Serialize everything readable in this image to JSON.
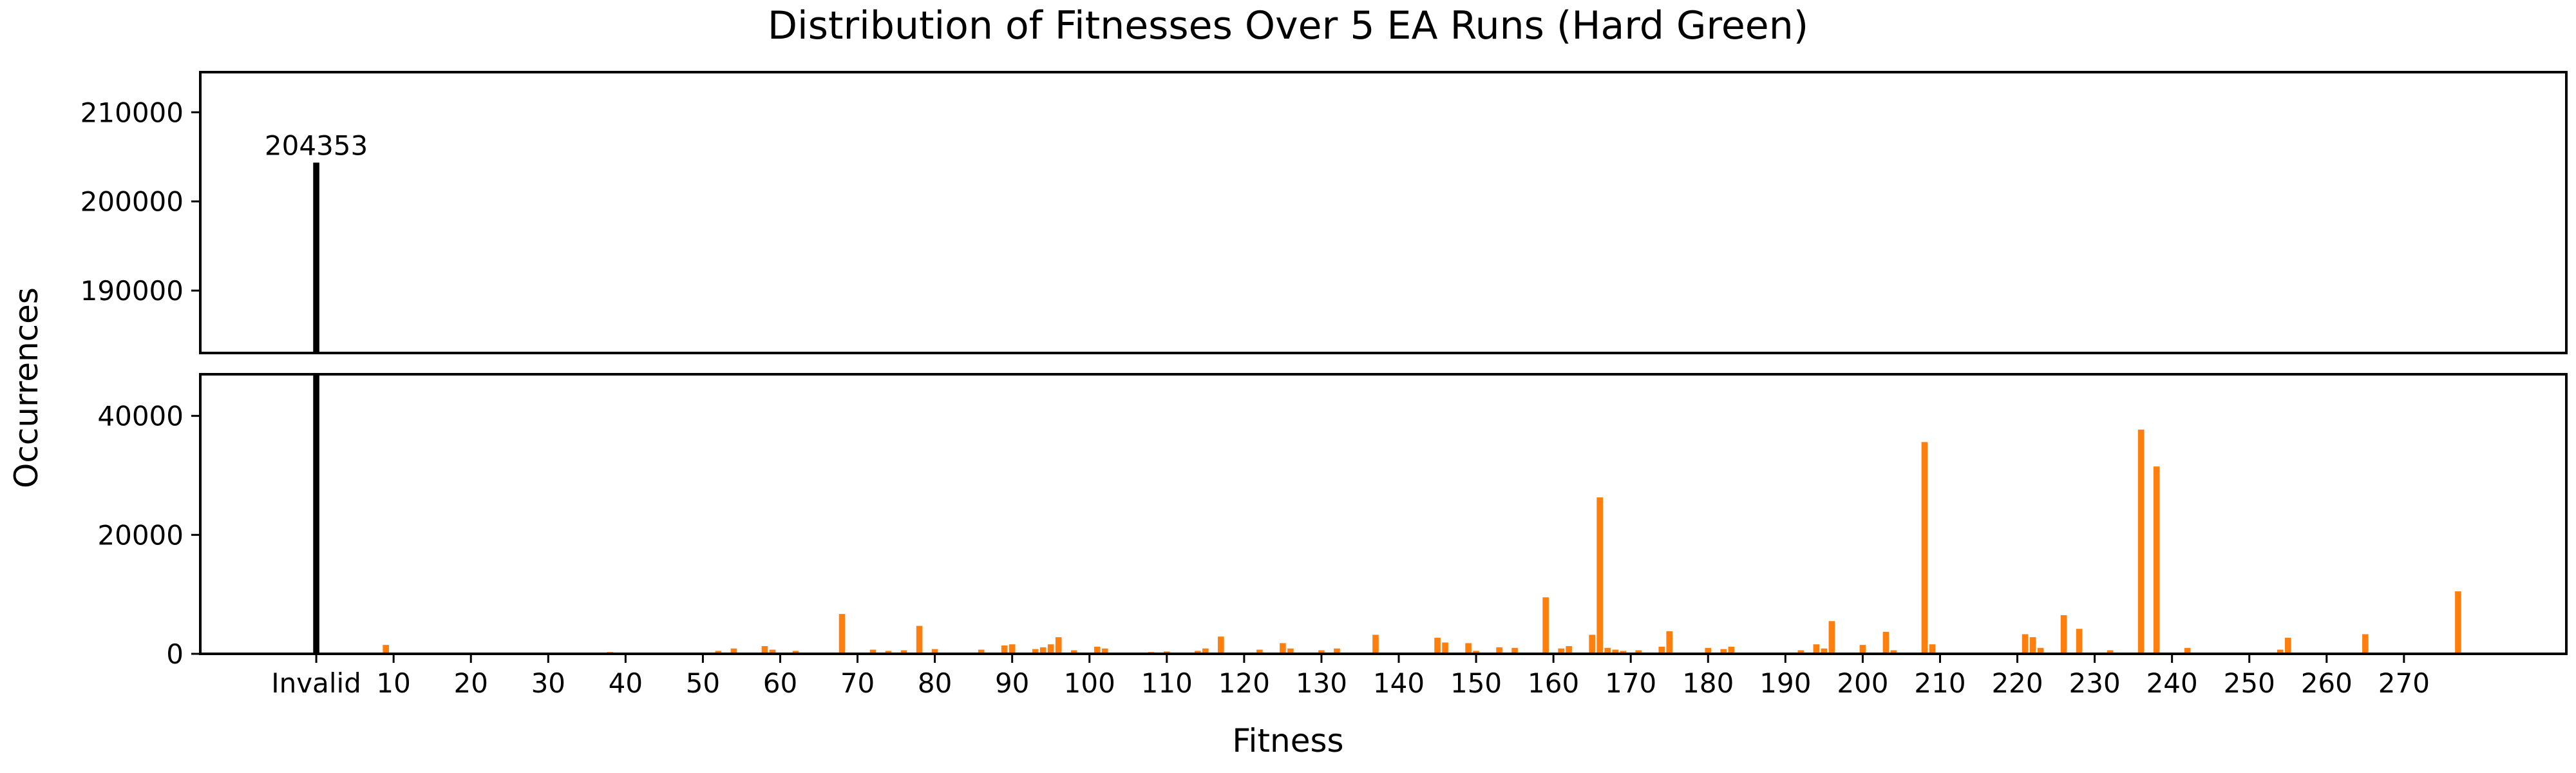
{
  "chart_data": {
    "type": "bar",
    "title": "Distribution of Fitnesses Over 5 EA Runs (Hard Green)",
    "xlabel": "Fitness",
    "ylabel": "Occurrences",
    "broken_y_axis": true,
    "top_panel": {
      "ylim": [
        183000,
        214500
      ],
      "yticks": [
        190000,
        200000,
        210000
      ]
    },
    "bottom_panel": {
      "ylim": [
        0,
        47000
      ],
      "yticks": [
        0,
        20000,
        40000
      ]
    },
    "xlim": [
      -15,
      291
    ],
    "xticks": [
      {
        "value": 0,
        "label": "Invalid"
      },
      {
        "value": 10,
        "label": "10"
      },
      {
        "value": 20,
        "label": "20"
      },
      {
        "value": 30,
        "label": "30"
      },
      {
        "value": 40,
        "label": "40"
      },
      {
        "value": 50,
        "label": "50"
      },
      {
        "value": 60,
        "label": "60"
      },
      {
        "value": 70,
        "label": "70"
      },
      {
        "value": 80,
        "label": "80"
      },
      {
        "value": 90,
        "label": "90"
      },
      {
        "value": 100,
        "label": "100"
      },
      {
        "value": 110,
        "label": "110"
      },
      {
        "value": 120,
        "label": "120"
      },
      {
        "value": 130,
        "label": "130"
      },
      {
        "value": 140,
        "label": "140"
      },
      {
        "value": 150,
        "label": "150"
      },
      {
        "value": 160,
        "label": "160"
      },
      {
        "value": 170,
        "label": "170"
      },
      {
        "value": 180,
        "label": "180"
      },
      {
        "value": 190,
        "label": "190"
      },
      {
        "value": 200,
        "label": "200"
      },
      {
        "value": 210,
        "label": "210"
      },
      {
        "value": 220,
        "label": "220"
      },
      {
        "value": 230,
        "label": "230"
      },
      {
        "value": 240,
        "label": "240"
      },
      {
        "value": 250,
        "label": "250"
      },
      {
        "value": 260,
        "label": "260"
      },
      {
        "value": 270,
        "label": "270"
      }
    ],
    "invalid_bar": {
      "x": 0,
      "value": 204353,
      "label": "204353",
      "color": "#000000"
    },
    "bar_color": "#ff7f0e",
    "bars": [
      {
        "x": 9,
        "y": 1500
      },
      {
        "x": 38,
        "y": 300
      },
      {
        "x": 52,
        "y": 500
      },
      {
        "x": 54,
        "y": 900
      },
      {
        "x": 58,
        "y": 1300
      },
      {
        "x": 59,
        "y": 700
      },
      {
        "x": 62,
        "y": 500
      },
      {
        "x": 68,
        "y": 6700
      },
      {
        "x": 72,
        "y": 700
      },
      {
        "x": 74,
        "y": 500
      },
      {
        "x": 76,
        "y": 600
      },
      {
        "x": 78,
        "y": 4700
      },
      {
        "x": 80,
        "y": 800
      },
      {
        "x": 86,
        "y": 700
      },
      {
        "x": 89,
        "y": 1400
      },
      {
        "x": 90,
        "y": 1600
      },
      {
        "x": 93,
        "y": 800
      },
      {
        "x": 94,
        "y": 1100
      },
      {
        "x": 95,
        "y": 1600
      },
      {
        "x": 96,
        "y": 2800
      },
      {
        "x": 98,
        "y": 600
      },
      {
        "x": 101,
        "y": 1200
      },
      {
        "x": 102,
        "y": 900
      },
      {
        "x": 108,
        "y": 300
      },
      {
        "x": 110,
        "y": 400
      },
      {
        "x": 114,
        "y": 500
      },
      {
        "x": 115,
        "y": 900
      },
      {
        "x": 117,
        "y": 2900
      },
      {
        "x": 122,
        "y": 700
      },
      {
        "x": 125,
        "y": 1800
      },
      {
        "x": 126,
        "y": 900
      },
      {
        "x": 130,
        "y": 600
      },
      {
        "x": 132,
        "y": 900
      },
      {
        "x": 137,
        "y": 3200
      },
      {
        "x": 145,
        "y": 2700
      },
      {
        "x": 146,
        "y": 1900
      },
      {
        "x": 149,
        "y": 1800
      },
      {
        "x": 150,
        "y": 500
      },
      {
        "x": 153,
        "y": 1100
      },
      {
        "x": 155,
        "y": 1000
      },
      {
        "x": 159,
        "y": 9500
      },
      {
        "x": 161,
        "y": 900
      },
      {
        "x": 162,
        "y": 1300
      },
      {
        "x": 165,
        "y": 3200
      },
      {
        "x": 166,
        "y": 26300
      },
      {
        "x": 167,
        "y": 1000
      },
      {
        "x": 168,
        "y": 700
      },
      {
        "x": 169,
        "y": 500
      },
      {
        "x": 171,
        "y": 600
      },
      {
        "x": 174,
        "y": 1200
      },
      {
        "x": 175,
        "y": 3800
      },
      {
        "x": 180,
        "y": 1000
      },
      {
        "x": 182,
        "y": 800
      },
      {
        "x": 183,
        "y": 1200
      },
      {
        "x": 192,
        "y": 600
      },
      {
        "x": 194,
        "y": 1600
      },
      {
        "x": 195,
        "y": 900
      },
      {
        "x": 196,
        "y": 5500
      },
      {
        "x": 200,
        "y": 1500
      },
      {
        "x": 203,
        "y": 3700
      },
      {
        "x": 204,
        "y": 600
      },
      {
        "x": 208,
        "y": 35600
      },
      {
        "x": 209,
        "y": 1600
      },
      {
        "x": 221,
        "y": 3300
      },
      {
        "x": 222,
        "y": 2800
      },
      {
        "x": 223,
        "y": 1000
      },
      {
        "x": 226,
        "y": 6500
      },
      {
        "x": 228,
        "y": 4200
      },
      {
        "x": 232,
        "y": 600
      },
      {
        "x": 236,
        "y": 37700
      },
      {
        "x": 238,
        "y": 31500
      },
      {
        "x": 242,
        "y": 1000
      },
      {
        "x": 254,
        "y": 700
      },
      {
        "x": 255,
        "y": 2700
      },
      {
        "x": 265,
        "y": 3300
      },
      {
        "x": 277,
        "y": 10500
      }
    ]
  }
}
